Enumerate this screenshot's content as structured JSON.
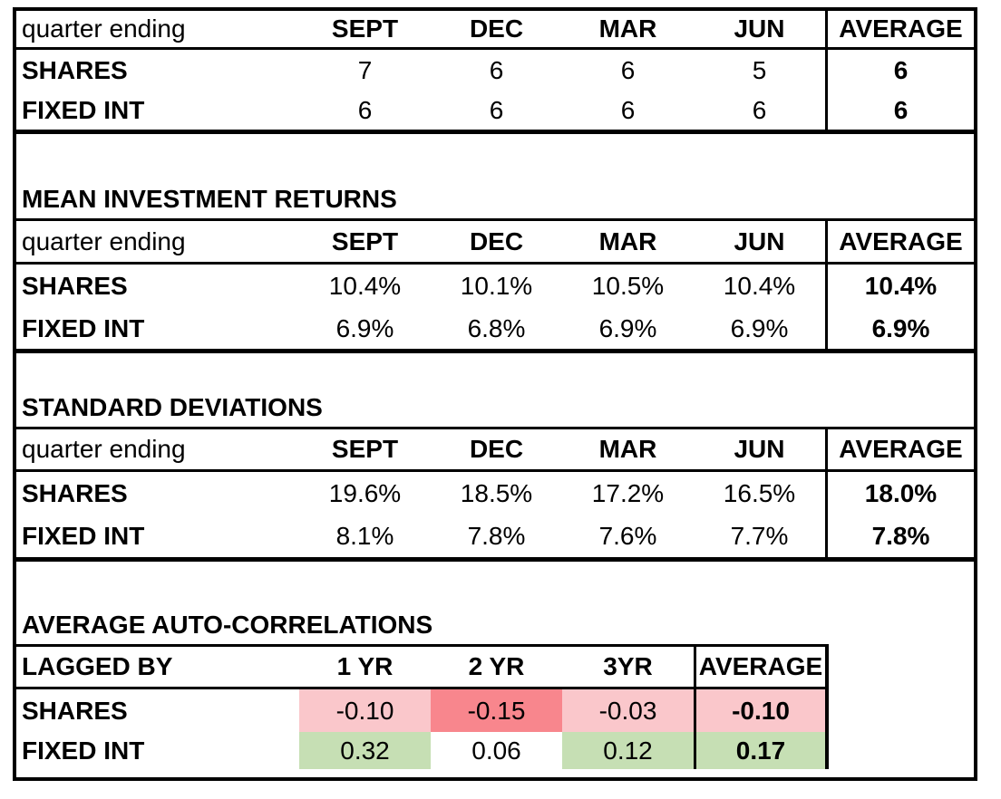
{
  "colors": {
    "grid_border": "#000000",
    "negative_cell_fill": "#FAC7CB",
    "strong_negative_cell_fill": "#F8868D",
    "positive_cell_fill": "#C6DFB4",
    "background": "#FFFFFF",
    "text": "#000000"
  },
  "sections": {
    "frequency": {
      "header": [
        "quarter ending",
        "SEPT",
        "DEC",
        "MAR",
        "JUN",
        "AVERAGE"
      ],
      "rows": [
        {
          "label": "SHARES",
          "values": [
            "7",
            "6",
            "6",
            "5"
          ],
          "average": "6"
        },
        {
          "label": "FIXED INT",
          "values": [
            "6",
            "6",
            "6",
            "6"
          ],
          "average": "6"
        }
      ]
    },
    "mean_returns": {
      "title": "MEAN INVESTMENT RETURNS",
      "header": [
        "quarter ending",
        "SEPT",
        "DEC",
        "MAR",
        "JUN",
        "AVERAGE"
      ],
      "rows": [
        {
          "label": "SHARES",
          "values": [
            "10.4%",
            "10.1%",
            "10.5%",
            "10.4%"
          ],
          "average": "10.4%"
        },
        {
          "label": "FIXED INT",
          "values": [
            "6.9%",
            "6.8%",
            "6.9%",
            "6.9%"
          ],
          "average": "6.9%"
        }
      ]
    },
    "standard_deviations": {
      "title": "STANDARD DEVIATIONS",
      "header": [
        "quarter ending",
        "SEPT",
        "DEC",
        "MAR",
        "JUN",
        "AVERAGE"
      ],
      "rows": [
        {
          "label": "SHARES",
          "values": [
            "19.6%",
            "18.5%",
            "17.2%",
            "16.5%"
          ],
          "average": "18.0%"
        },
        {
          "label": "FIXED INT",
          "values": [
            "8.1%",
            "7.8%",
            "7.6%",
            "7.7%"
          ],
          "average": "7.8%"
        }
      ]
    },
    "auto_correlations": {
      "title": "AVERAGE AUTO-CORRELATIONS",
      "header": [
        "LAGGED BY",
        "1 YR",
        "2 YR",
        "3YR",
        "AVERAGE"
      ],
      "rows": [
        {
          "label": "SHARES",
          "values": [
            "-0.10",
            "-0.15",
            "-0.03"
          ],
          "average": "-0.10"
        },
        {
          "label": "FIXED INT",
          "values": [
            "0.32",
            "0.06",
            "0.12"
          ],
          "average": "0.17"
        }
      ]
    }
  }
}
